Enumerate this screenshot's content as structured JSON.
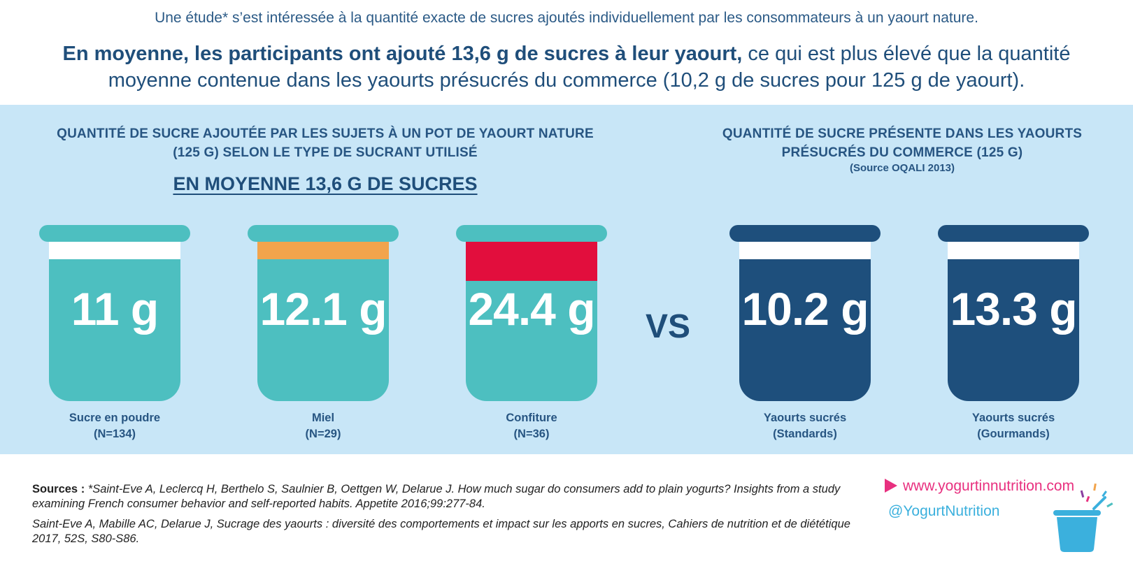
{
  "intro": "Une étude* s’est intéressée à la quantité exacte de sucres ajoutés individuellement par les consommateurs à un yaourt nature.",
  "headline": {
    "bold": "En moyenne, les participants ont ajouté 13,6 g de sucres à leur yaourt,",
    "rest": " ce qui est plus élevé que la quantité moyenne contenue dans les yaourts présucrés du commerce (10,2 g de sucres pour 125 g de yaourt)."
  },
  "left_section": {
    "title": "QUANTITÉ DE SUCRE AJOUTÉE PAR LES SUJETS À UN POT DE YAOURT NATURE (125 G) SELON LE TYPE DE SUCRANT UTILISÉ",
    "average": "EN MOYENNE 13,6 G DE SUCRES"
  },
  "right_section": {
    "title": "QUANTITÉ DE SUCRE PRÉSENTE DANS LES YAOURTS PRÉSUCRÉS DU COMMERCE (125 G)",
    "source": "(Source OQALI 2013)"
  },
  "vs": "VS",
  "cups": [
    {
      "value": "11 g",
      "label": "Sucre en poudre",
      "sublabel": "(N=134)",
      "band_color": "#ffffff",
      "band_fraction": 0.2
    },
    {
      "value": "12.1 g",
      "label": "Miel",
      "sublabel": "(N=29)",
      "band_color": "#f2a44c",
      "band_fraction": 0.2
    },
    {
      "value": "24.4 g",
      "label": "Confiture",
      "sublabel": "(N=36)",
      "band_color": "#e20e3d",
      "band_fraction": 0.45
    },
    {
      "value": "10.2 g",
      "label": "Yaourts sucrés",
      "sublabel": "(Standards)",
      "band_color": "#ffffff",
      "band_fraction": 0.2
    },
    {
      "value": "13.3 g",
      "label": "Yaourts sucrés",
      "sublabel": "(Gourmands)",
      "band_color": "#ffffff",
      "band_fraction": 0.2
    }
  ],
  "sources": {
    "label": "Sources :",
    "ref1": " *Saint-Eve A, Leclercq H, Berthelo S, Saulnier B, Oettgen W, Delarue J. How much sugar do consumers add to plain yogurts? Insights from a study examining French consumer behavior and self-reported habits. Appetite 2016;99:277-84.",
    "ref2": "Saint-Eve A, Mabille AC, Delarue J, Sucrage des yaourts : diversité des comportements et impact sur les apports en sucres, Cahiers de nutrition et de diététique 2017, 52S, S80-S86."
  },
  "website": "www.yogurtinnutrition.com",
  "twitter": "@YogurtNutrition",
  "icons": {
    "website": "play-triangle-icon",
    "logo": "yogurt-cup-logo-icon"
  }
}
